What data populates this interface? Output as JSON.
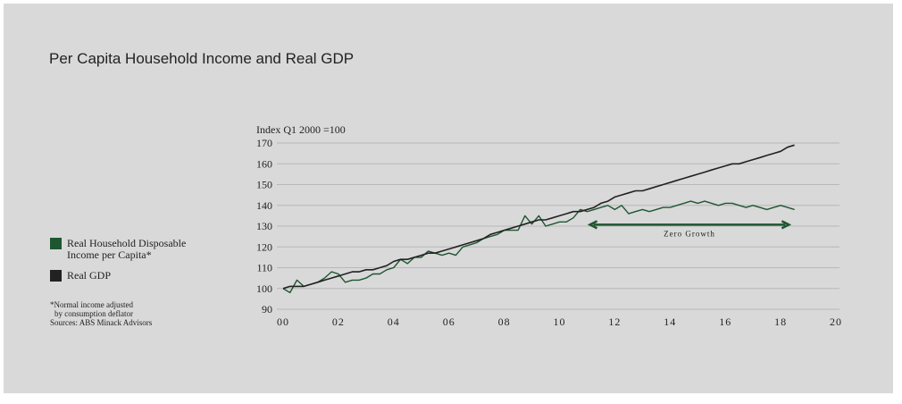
{
  "title": "Per Capita Household Income and Real GDP",
  "legend": [
    {
      "label": "Real Household Disposable Income per Capita*",
      "color": "#1e5631"
    },
    {
      "label": "Real GDP",
      "color": "#222222"
    }
  ],
  "footnote": {
    "line1": "*Normal income adjusted",
    "line2": "by consumption deflator",
    "line3": "Sources: ABS Minack Advisors"
  },
  "chart_data": {
    "type": "line",
    "title": "Per Capita Household Income and Real GDP",
    "ylabel": "Index Q1 2000 =100",
    "xlabel": "",
    "xlim": [
      0,
      20
    ],
    "ylim": [
      90,
      170
    ],
    "x_ticks": [
      "00",
      "02",
      "04",
      "06",
      "08",
      "10",
      "12",
      "14",
      "16",
      "18",
      "20"
    ],
    "y_ticks": [
      "90",
      "100",
      "110",
      "120",
      "130",
      "140",
      "150",
      "160",
      "170"
    ],
    "annotation": {
      "text": "Zero Growth",
      "x_start": 11.1,
      "x_end": 18.3,
      "y": 132
    },
    "series": [
      {
        "name": "Real Household Disposable Income per Capita*",
        "color": "#1e5631",
        "x": [
          0.0,
          0.25,
          0.5,
          0.75,
          1.0,
          1.25,
          1.5,
          1.75,
          2.0,
          2.25,
          2.5,
          2.75,
          3.0,
          3.25,
          3.5,
          3.75,
          4.0,
          4.25,
          4.5,
          4.75,
          5.0,
          5.25,
          5.5,
          5.75,
          6.0,
          6.25,
          6.5,
          6.75,
          7.0,
          7.25,
          7.5,
          7.75,
          8.0,
          8.25,
          8.5,
          8.75,
          9.0,
          9.25,
          9.5,
          9.75,
          10.0,
          10.25,
          10.5,
          10.75,
          11.0,
          11.25,
          11.5,
          11.75,
          12.0,
          12.25,
          12.5,
          12.75,
          13.0,
          13.25,
          13.5,
          13.75,
          14.0,
          14.25,
          14.5,
          14.75,
          15.0,
          15.25,
          15.5,
          15.75,
          16.0,
          16.25,
          16.5,
          16.75,
          17.0,
          17.25,
          17.5,
          17.75,
          18.0,
          18.25,
          18.5
        ],
        "values": [
          100,
          98,
          104,
          101,
          102,
          103,
          105,
          108,
          107,
          103,
          104,
          104,
          105,
          107,
          107,
          109,
          110,
          114,
          112,
          115,
          115,
          118,
          117,
          116,
          117,
          116,
          120,
          121,
          122,
          124,
          125,
          126,
          128,
          128,
          128,
          135,
          131,
          135,
          130,
          131,
          132,
          132,
          134,
          138,
          137,
          138,
          139,
          140,
          138,
          140,
          136,
          137,
          138,
          137,
          138,
          139,
          139,
          140,
          141,
          142,
          141,
          142,
          141,
          140,
          141,
          141,
          140,
          139,
          140,
          139,
          138,
          139,
          140,
          139,
          138
        ]
      },
      {
        "name": "Real GDP",
        "color": "#222222",
        "x": [
          0.0,
          0.25,
          0.5,
          0.75,
          1.0,
          1.25,
          1.5,
          1.75,
          2.0,
          2.25,
          2.5,
          2.75,
          3.0,
          3.25,
          3.5,
          3.75,
          4.0,
          4.25,
          4.5,
          4.75,
          5.0,
          5.25,
          5.5,
          5.75,
          6.0,
          6.25,
          6.5,
          6.75,
          7.0,
          7.25,
          7.5,
          7.75,
          8.0,
          8.25,
          8.5,
          8.75,
          9.0,
          9.25,
          9.5,
          9.75,
          10.0,
          10.25,
          10.5,
          10.75,
          11.0,
          11.25,
          11.5,
          11.75,
          12.0,
          12.25,
          12.5,
          12.75,
          13.0,
          13.25,
          13.5,
          13.75,
          14.0,
          14.25,
          14.5,
          14.75,
          15.0,
          15.25,
          15.5,
          15.75,
          16.0,
          16.25,
          16.5,
          16.75,
          17.0,
          17.25,
          17.5,
          17.75,
          18.0,
          18.25,
          18.5
        ],
        "values": [
          100,
          101,
          101,
          101,
          102,
          103,
          104,
          105,
          106,
          107,
          108,
          108,
          109,
          109,
          110,
          111,
          113,
          114,
          114,
          115,
          116,
          117,
          117,
          118,
          119,
          120,
          121,
          122,
          123,
          124,
          126,
          127,
          128,
          129,
          130,
          131,
          132,
          133,
          133,
          134,
          135,
          136,
          137,
          137,
          138,
          139,
          141,
          142,
          144,
          145,
          146,
          147,
          147,
          148,
          149,
          150,
          151,
          152,
          153,
          154,
          155,
          156,
          157,
          158,
          159,
          160,
          160,
          161,
          162,
          163,
          164,
          165,
          166,
          168,
          169
        ]
      }
    ]
  }
}
